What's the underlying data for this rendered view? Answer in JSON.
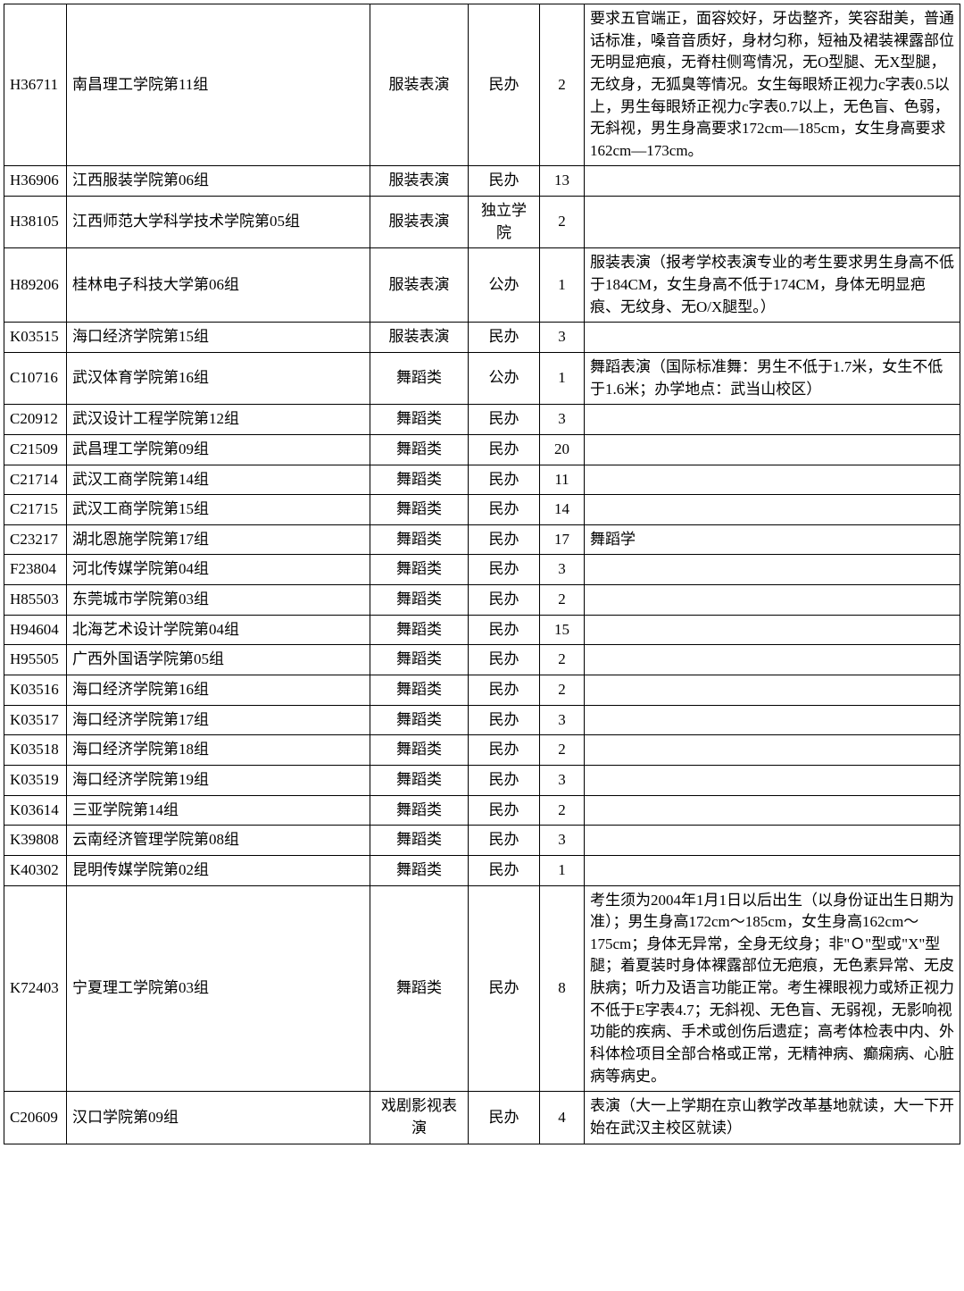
{
  "table": {
    "columns": [
      {
        "key": "code",
        "class": "col-code"
      },
      {
        "key": "name",
        "class": "col-name"
      },
      {
        "key": "category",
        "class": "col-cat"
      },
      {
        "key": "type",
        "class": "col-type"
      },
      {
        "key": "num",
        "class": "col-num"
      },
      {
        "key": "note",
        "class": "col-note"
      }
    ],
    "rows": [
      {
        "code": "H36711",
        "name": "南昌理工学院第11组",
        "category": "服装表演",
        "type": "民办",
        "num": "2",
        "note": "要求五官端正，面容姣好，牙齿整齐，笑容甜美，普通话标准，嗓音音质好，身材匀称，短袖及裙装裸露部位无明显疤痕，无脊柱侧弯情况，无O型腿、无X型腿，无纹身，无狐臭等情况。女生每眼矫正视力c字表0.5以上，男生每眼矫正视力c字表0.7以上，无色盲、色弱，无斜视，男生身高要求172cm—185cm，女生身高要求162cm—173cm。"
      },
      {
        "code": "H36906",
        "name": "江西服装学院第06组",
        "category": "服装表演",
        "type": "民办",
        "num": "13",
        "note": ""
      },
      {
        "code": "H38105",
        "name": "江西师范大学科学技术学院第05组",
        "category": "服装表演",
        "type": "独立学院",
        "num": "2",
        "note": ""
      },
      {
        "code": "H89206",
        "name": "桂林电子科技大学第06组",
        "category": "服装表演",
        "type": "公办",
        "num": "1",
        "note": "服装表演（报考学校表演专业的考生要求男生身高不低于184CM，女生身高不低于174CM，身体无明显疤痕、无纹身、无O/X腿型。）"
      },
      {
        "code": "K03515",
        "name": "海口经济学院第15组",
        "category": "服装表演",
        "type": "民办",
        "num": "3",
        "note": ""
      },
      {
        "code": "C10716",
        "name": "武汉体育学院第16组",
        "category": "舞蹈类",
        "type": "公办",
        "num": "1",
        "note": "舞蹈表演（国际标准舞：男生不低于1.7米，女生不低于1.6米；办学地点：武当山校区）"
      },
      {
        "code": "C20912",
        "name": "武汉设计工程学院第12组",
        "category": "舞蹈类",
        "type": "民办",
        "num": "3",
        "note": ""
      },
      {
        "code": "C21509",
        "name": "武昌理工学院第09组",
        "category": "舞蹈类",
        "type": "民办",
        "num": "20",
        "note": ""
      },
      {
        "code": "C21714",
        "name": "武汉工商学院第14组",
        "category": "舞蹈类",
        "type": "民办",
        "num": "11",
        "note": ""
      },
      {
        "code": "C21715",
        "name": "武汉工商学院第15组",
        "category": "舞蹈类",
        "type": "民办",
        "num": "14",
        "note": ""
      },
      {
        "code": "C23217",
        "name": "湖北恩施学院第17组",
        "category": "舞蹈类",
        "type": "民办",
        "num": "17",
        "note": "舞蹈学"
      },
      {
        "code": "F23804",
        "name": "河北传媒学院第04组",
        "category": "舞蹈类",
        "type": "民办",
        "num": "3",
        "note": ""
      },
      {
        "code": "H85503",
        "name": "东莞城市学院第03组",
        "category": "舞蹈类",
        "type": "民办",
        "num": "2",
        "note": ""
      },
      {
        "code": "H94604",
        "name": "北海艺术设计学院第04组",
        "category": "舞蹈类",
        "type": "民办",
        "num": "15",
        "note": ""
      },
      {
        "code": "H95505",
        "name": "广西外国语学院第05组",
        "category": "舞蹈类",
        "type": "民办",
        "num": "2",
        "note": ""
      },
      {
        "code": "K03516",
        "name": "海口经济学院第16组",
        "category": "舞蹈类",
        "type": "民办",
        "num": "2",
        "note": ""
      },
      {
        "code": "K03517",
        "name": "海口经济学院第17组",
        "category": "舞蹈类",
        "type": "民办",
        "num": "3",
        "note": ""
      },
      {
        "code": "K03518",
        "name": "海口经济学院第18组",
        "category": "舞蹈类",
        "type": "民办",
        "num": "2",
        "note": ""
      },
      {
        "code": "K03519",
        "name": "海口经济学院第19组",
        "category": "舞蹈类",
        "type": "民办",
        "num": "3",
        "note": ""
      },
      {
        "code": "K03614",
        "name": "三亚学院第14组",
        "category": "舞蹈类",
        "type": "民办",
        "num": "2",
        "note": ""
      },
      {
        "code": "K39808",
        "name": "云南经济管理学院第08组",
        "category": "舞蹈类",
        "type": "民办",
        "num": "3",
        "note": ""
      },
      {
        "code": "K40302",
        "name": "昆明传媒学院第02组",
        "category": "舞蹈类",
        "type": "民办",
        "num": "1",
        "note": ""
      },
      {
        "code": "K72403",
        "name": "宁夏理工学院第03组",
        "category": "舞蹈类",
        "type": "民办",
        "num": "8",
        "note": "考生须为2004年1月1日以后出生（以身份证出生日期为准）；男生身高172cm～185cm，女生身高162cm～175cm；身体无异常，全身无纹身；非\"Ｏ\"型或\"X\"型腿；着夏装时身体裸露部位无疤痕，无色素异常、无皮肤病；听力及语言功能正常。考生裸眼视力或矫正视力不低于E字表4.7；无斜视、无色盲、无弱视，无影响视功能的疾病、手术或创伤后遗症；高考体检表中内、外科体检项目全部合格或正常，无精神病、癫痫病、心脏病等病史。"
      },
      {
        "code": "C20609",
        "name": "汉口学院第09组",
        "category": "戏剧影视表演",
        "type": "民办",
        "num": "4",
        "note": "表演（大一上学期在京山教学改革基地就读，大一下开始在武汉主校区就读）"
      }
    ]
  },
  "styling": {
    "border_color": "#000000",
    "border_width": 1.5,
    "background_color": "#ffffff",
    "font_family": "SimSun",
    "font_size": 17,
    "line_height": 1.45,
    "col_widths": {
      "code": 70,
      "name": 340,
      "category": 110,
      "type": 80,
      "num": 50
    }
  }
}
